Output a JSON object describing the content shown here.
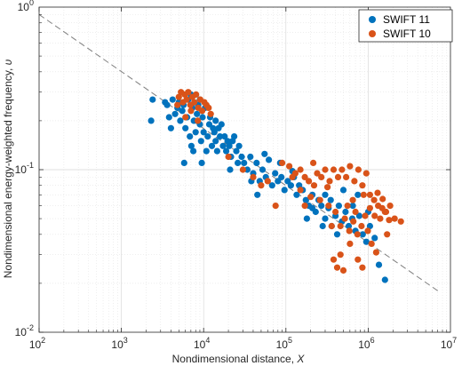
{
  "chart_data": {
    "type": "scatter",
    "xlabel": "Nondimensional distance, ",
    "xlabel_symbol": "X",
    "ylabel": "Nondimensional energy-weighted frequency, ",
    "ylabel_symbol": "υ",
    "x_scale": "log",
    "y_scale": "log",
    "xlim": [
      100,
      10000000
    ],
    "ylim": [
      0.01,
      1
    ],
    "grid": true,
    "legend_position": "top-right",
    "x_ticks": [
      {
        "base": "10",
        "exp": "2"
      },
      {
        "base": "10",
        "exp": "3"
      },
      {
        "base": "10",
        "exp": "4"
      },
      {
        "base": "10",
        "exp": "5"
      },
      {
        "base": "10",
        "exp": "6"
      },
      {
        "base": "10",
        "exp": "7"
      }
    ],
    "y_ticks": [
      {
        "base": "10",
        "exp": "-2"
      },
      {
        "base": "10",
        "exp": "-1"
      },
      {
        "base": "10",
        "exp": "0"
      }
    ],
    "reference_line": {
      "style": "dashed",
      "color": "#808080",
      "points": [
        [
          100,
          0.9
        ],
        [
          7000000,
          0.018
        ]
      ]
    },
    "series": [
      {
        "name": "SWIFT 11",
        "color": "#0072bd",
        "points": [
          [
            2300,
            0.2
          ],
          [
            2400,
            0.27
          ],
          [
            3400,
            0.26
          ],
          [
            3600,
            0.25
          ],
          [
            3800,
            0.21
          ],
          [
            4000,
            0.18
          ],
          [
            4200,
            0.27
          ],
          [
            4500,
            0.22
          ],
          [
            4800,
            0.24
          ],
          [
            5000,
            0.26
          ],
          [
            5200,
            0.2
          ],
          [
            5500,
            0.23
          ],
          [
            5700,
            0.25
          ],
          [
            6000,
            0.18
          ],
          [
            6300,
            0.21
          ],
          [
            6500,
            0.27
          ],
          [
            6800,
            0.16
          ],
          [
            7100,
            0.14
          ],
          [
            7300,
            0.24
          ],
          [
            7600,
            0.2
          ],
          [
            8000,
            0.17
          ],
          [
            8300,
            0.22
          ],
          [
            8600,
            0.25
          ],
          [
            9000,
            0.19
          ],
          [
            9300,
            0.15
          ],
          [
            9700,
            0.21
          ],
          [
            10000,
            0.17
          ],
          [
            10400,
            0.24
          ],
          [
            10800,
            0.13
          ],
          [
            11200,
            0.16
          ],
          [
            11700,
            0.19
          ],
          [
            12000,
            0.21
          ],
          [
            12600,
            0.14
          ],
          [
            13000,
            0.18
          ],
          [
            13500,
            0.17
          ],
          [
            14000,
            0.15
          ],
          [
            14600,
            0.13
          ],
          [
            15200,
            0.18
          ],
          [
            15800,
            0.16
          ],
          [
            16500,
            0.19
          ],
          [
            17200,
            0.14
          ],
          [
            18000,
            0.16
          ],
          [
            18800,
            0.13
          ],
          [
            19500,
            0.15
          ],
          [
            20500,
            0.14
          ],
          [
            21500,
            0.12
          ],
          [
            22500,
            0.15
          ],
          [
            5800,
            0.11
          ],
          [
            7500,
            0.13
          ],
          [
            9500,
            0.11
          ],
          [
            21000,
            0.1
          ],
          [
            23500,
            0.16
          ],
          [
            25000,
            0.13
          ],
          [
            27000,
            0.14
          ],
          [
            29000,
            0.12
          ],
          [
            31000,
            0.11
          ],
          [
            34000,
            0.1
          ],
          [
            37000,
            0.12
          ],
          [
            40000,
            0.095
          ],
          [
            44000,
            0.11
          ],
          [
            48000,
            0.085
          ],
          [
            52000,
            0.1
          ],
          [
            57000,
            0.09
          ],
          [
            62000,
            0.115
          ],
          [
            68000,
            0.08
          ],
          [
            74000,
            0.095
          ],
          [
            80000,
            0.085
          ],
          [
            88000,
            0.09
          ],
          [
            96000,
            0.075
          ],
          [
            105000,
            0.085
          ],
          [
            115000,
            0.08
          ],
          [
            125000,
            0.09
          ],
          [
            135000,
            0.07
          ],
          [
            145000,
            0.08
          ],
          [
            160000,
            0.075
          ],
          [
            175000,
            0.065
          ],
          [
            190000,
            0.06
          ],
          [
            210000,
            0.07
          ],
          [
            230000,
            0.055
          ],
          [
            250000,
            0.065
          ],
          [
            270000,
            0.06
          ],
          [
            300000,
            0.05
          ],
          [
            330000,
            0.058
          ],
          [
            360000,
            0.045
          ],
          [
            400000,
            0.052
          ],
          [
            440000,
            0.06
          ],
          [
            480000,
            0.048
          ],
          [
            530000,
            0.055
          ],
          [
            580000,
            0.045
          ],
          [
            640000,
            0.05
          ],
          [
            700000,
            0.042
          ],
          [
            780000,
            0.052
          ],
          [
            860000,
            0.04
          ],
          [
            950000,
            0.036
          ],
          [
            1050000,
            0.045
          ],
          [
            1200000,
            0.038
          ],
          [
            1350000,
            0.026
          ],
          [
            1600000,
            0.021
          ],
          [
            300000,
            0.07
          ],
          [
            420000,
            0.04
          ],
          [
            650000,
            0.06
          ],
          [
            280000,
            0.045
          ],
          [
            210000,
            0.058
          ],
          [
            120000,
            0.098
          ],
          [
            55000,
            0.125
          ],
          [
            38000,
            0.085
          ],
          [
            14000,
            0.2
          ],
          [
            9000,
            0.27
          ],
          [
            7000,
            0.29
          ],
          [
            26000,
            0.11
          ],
          [
            45000,
            0.07
          ],
          [
            500000,
            0.075
          ],
          [
            180000,
            0.05
          ],
          [
            350000,
            0.065
          ],
          [
            1000000,
            0.055
          ],
          [
            750000,
            0.07
          ],
          [
            85000,
            0.11
          ]
        ]
      },
      {
        "name": "SWIFT 10",
        "color": "#d95319",
        "points": [
          [
            5000,
            0.28
          ],
          [
            5300,
            0.3
          ],
          [
            5600,
            0.26
          ],
          [
            5900,
            0.29
          ],
          [
            6200,
            0.27
          ],
          [
            6500,
            0.3
          ],
          [
            6900,
            0.25
          ],
          [
            7300,
            0.28
          ],
          [
            7700,
            0.26
          ],
          [
            8100,
            0.29
          ],
          [
            8600,
            0.24
          ],
          [
            9100,
            0.27
          ],
          [
            9600,
            0.23
          ],
          [
            10200,
            0.26
          ],
          [
            10800,
            0.25
          ],
          [
            11500,
            0.24
          ],
          [
            12200,
            0.22
          ],
          [
            6000,
            0.21
          ],
          [
            7000,
            0.23
          ],
          [
            8500,
            0.2
          ],
          [
            4800,
            0.25
          ],
          [
            20000,
            0.12
          ],
          [
            30000,
            0.1
          ],
          [
            40000,
            0.09
          ],
          [
            50000,
            0.08
          ],
          [
            60000,
            0.085
          ],
          [
            75000,
            0.06
          ],
          [
            90000,
            0.11
          ],
          [
            110000,
            0.105
          ],
          [
            130000,
            0.095
          ],
          [
            150000,
            0.1
          ],
          [
            170000,
            0.09
          ],
          [
            190000,
            0.085
          ],
          [
            215000,
            0.11
          ],
          [
            240000,
            0.095
          ],
          [
            270000,
            0.09
          ],
          [
            300000,
            0.1
          ],
          [
            340000,
            0.085
          ],
          [
            380000,
            0.1
          ],
          [
            430000,
            0.09
          ],
          [
            480000,
            0.1
          ],
          [
            540000,
            0.09
          ],
          [
            600000,
            0.105
          ],
          [
            680000,
            0.085
          ],
          [
            760000,
            0.1
          ],
          [
            850000,
            0.08
          ],
          [
            950000,
            0.095
          ],
          [
            1050000,
            0.07
          ],
          [
            1180000,
            0.065
          ],
          [
            1320000,
            0.06
          ],
          [
            1480000,
            0.058
          ],
          [
            1650000,
            0.055
          ],
          [
            1850000,
            0.06
          ],
          [
            2100000,
            0.05
          ],
          [
            2500000,
            0.048
          ],
          [
            150000,
            0.075
          ],
          [
            200000,
            0.068
          ],
          [
            260000,
            0.065
          ],
          [
            330000,
            0.06
          ],
          [
            400000,
            0.055
          ],
          [
            460000,
            0.045
          ],
          [
            520000,
            0.05
          ],
          [
            590000,
            0.042
          ],
          [
            660000,
            0.048
          ],
          [
            740000,
            0.04
          ],
          [
            830000,
            0.045
          ],
          [
            920000,
            0.052
          ],
          [
            1050000,
            0.058
          ],
          [
            1200000,
            0.052
          ],
          [
            1400000,
            0.05
          ],
          [
            1600000,
            0.055
          ],
          [
            1800000,
            0.049
          ],
          [
            380000,
            0.028
          ],
          [
            420000,
            0.025
          ],
          [
            460000,
            0.03
          ],
          [
            500000,
            0.024
          ],
          [
            600000,
            0.035
          ],
          [
            750000,
            0.028
          ],
          [
            850000,
            0.025
          ],
          [
            1100000,
            0.035
          ],
          [
            1250000,
            0.031
          ],
          [
            220000,
            0.08
          ],
          [
            320000,
            0.078
          ],
          [
            650000,
            0.065
          ],
          [
            880000,
            0.07
          ],
          [
            1300000,
            0.072
          ],
          [
            1500000,
            0.066
          ],
          [
            120000,
            0.09
          ],
          [
            170000,
            0.06
          ],
          [
            360000,
            0.045
          ],
          [
            560000,
            0.06
          ],
          [
            700000,
            0.055
          ],
          [
            990000,
            0.042
          ],
          [
            1700000,
            0.04
          ]
        ]
      }
    ]
  }
}
